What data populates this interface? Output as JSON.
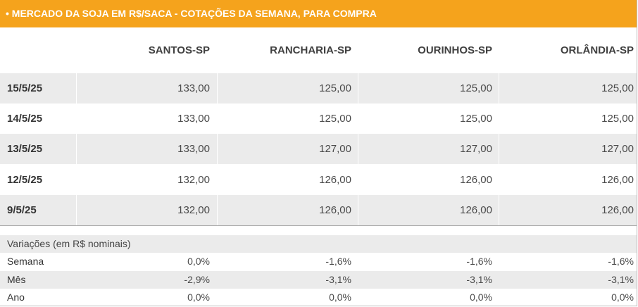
{
  "title": "• MERCADO DA SOJA EM R$/SACA - COTAÇÕES DA SEMANA, PARA COMPRA",
  "columns": [
    "SANTOS-SP",
    "RANCHARIA-SP",
    "OURINHOS-SP",
    "ORLÂNDIA-SP"
  ],
  "rows": [
    {
      "date": "15/5/25",
      "values": [
        "133,00",
        "125,00",
        "125,00",
        "125,00"
      ]
    },
    {
      "date": "14/5/25",
      "values": [
        "133,00",
        "125,00",
        "125,00",
        "125,00"
      ]
    },
    {
      "date": "13/5/25",
      "values": [
        "133,00",
        "127,00",
        "127,00",
        "127,00"
      ]
    },
    {
      "date": "12/5/25",
      "values": [
        "132,00",
        "126,00",
        "126,00",
        "126,00"
      ]
    },
    {
      "date": "9/5/25",
      "values": [
        "132,00",
        "126,00",
        "126,00",
        "126,00"
      ]
    }
  ],
  "variations": {
    "title": "Variações (em R$ nominais)",
    "rows": [
      {
        "label": "Semana",
        "values": [
          "0,0%",
          "-1,6%",
          "-1,6%",
          "-1,6%"
        ]
      },
      {
        "label": "Mês",
        "values": [
          "-2,9%",
          "-3,1%",
          "-3,1%",
          "-3,1%"
        ]
      },
      {
        "label": "Ano",
        "values": [
          "0,0%",
          "0,0%",
          "0,0%",
          "0,0%"
        ]
      }
    ]
  },
  "colors": {
    "accent": "#f5a31c",
    "row_shade": "#ebebeb"
  }
}
